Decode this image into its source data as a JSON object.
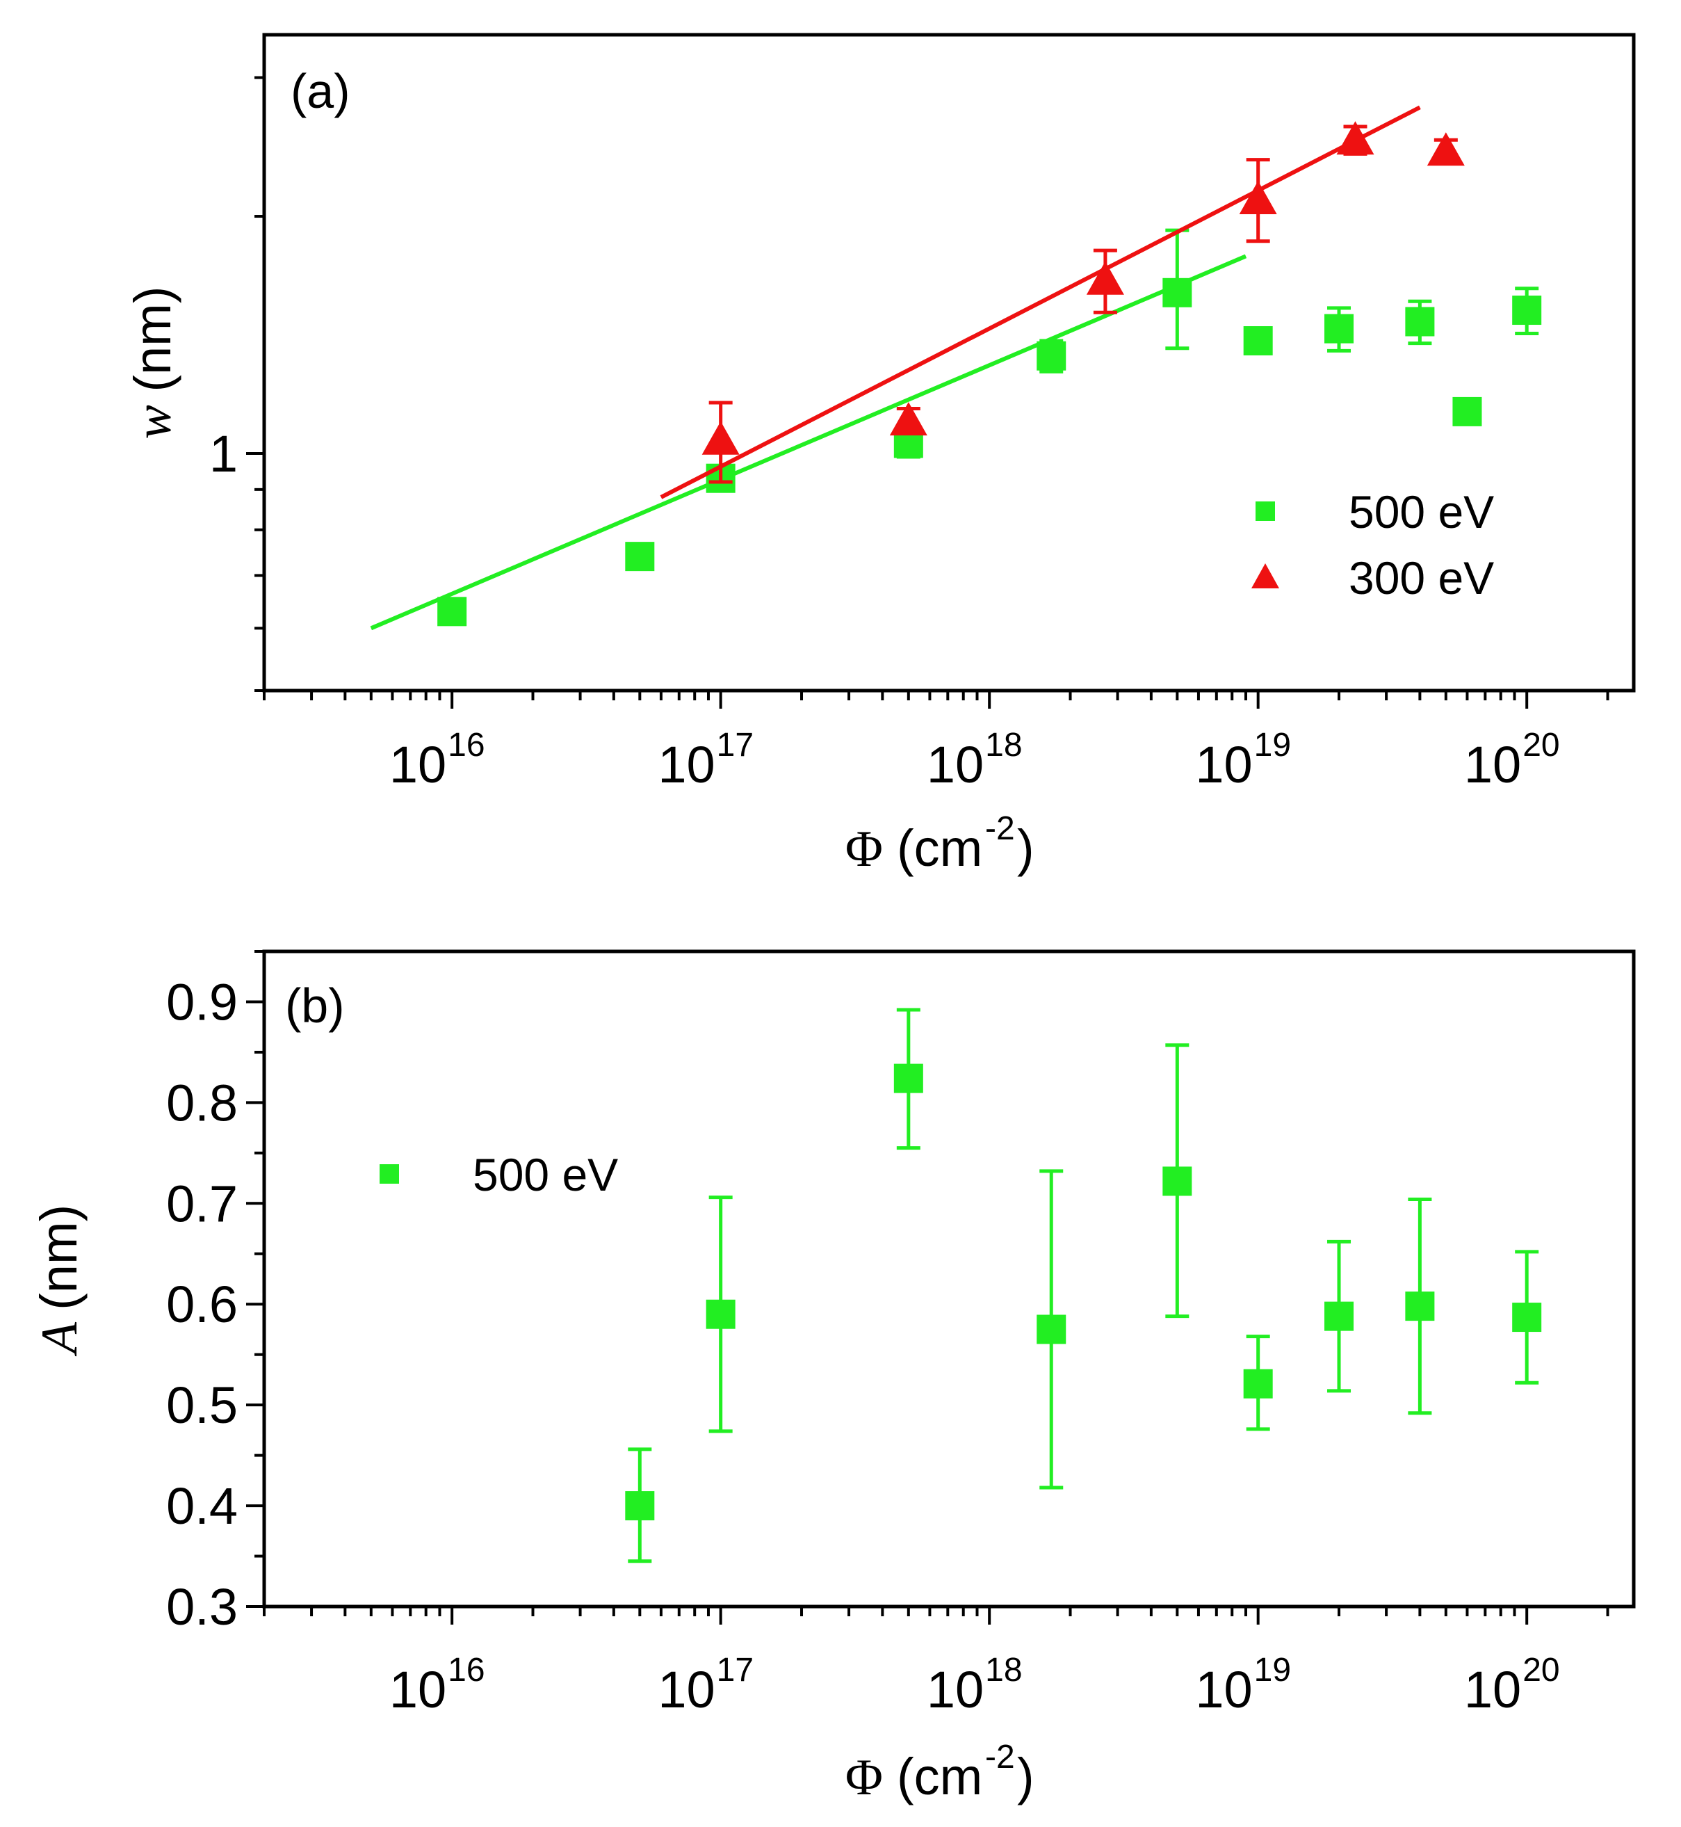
{
  "colors": {
    "green": "#22ee22",
    "red": "#ee1111",
    "axis": "#000000"
  },
  "chart_data": [
    {
      "type": "scatter",
      "panel_label": "(a)",
      "xlabel_symbol": "Φ",
      "xlabel_units": "(cm",
      "xlabel_exp": "-2",
      "xlabel_close": ")",
      "ylabel_symbol": "w",
      "ylabel_units": "(nm)",
      "xscale": "log",
      "yscale": "log",
      "xlim": [
        2000000000000000.0,
        2.5e+20
      ],
      "ylim": [
        0.5,
        3.4
      ],
      "x_ticks": [
        {
          "value": 1e+16,
          "base": "10",
          "exp": "16"
        },
        {
          "value": 1e+17,
          "base": "10",
          "exp": "17"
        },
        {
          "value": 1e+18,
          "base": "10",
          "exp": "18"
        },
        {
          "value": 1e+19,
          "base": "10",
          "exp": "19"
        },
        {
          "value": 1e+20,
          "base": "10",
          "exp": "20"
        }
      ],
      "y_ticks": [
        {
          "value": 1,
          "label": "1"
        }
      ],
      "legend": {
        "placement": "center-right",
        "entries": [
          {
            "label": "500 eV",
            "marker": "square",
            "color": "#22ee22"
          },
          {
            "label": "300 eV",
            "marker": "triangle",
            "color": "#ee1111"
          }
        ]
      },
      "series": [
        {
          "name": "500 eV",
          "marker": "square",
          "color": "#22ee22",
          "points": [
            {
              "x": 1e+16,
              "y": 0.63,
              "ylo": 0.61,
              "yhi": 0.65
            },
            {
              "x": 5e+16,
              "y": 0.74,
              "ylo": 0.725,
              "yhi": 0.755
            },
            {
              "x": 1e+17,
              "y": 0.93,
              "ylo": 0.91,
              "yhi": 0.95
            },
            {
              "x": 5e+17,
              "y": 1.03,
              "ylo": 0.99,
              "yhi": 1.07
            },
            {
              "x": 1.7e+18,
              "y": 1.33,
              "ylo": 1.27,
              "yhi": 1.39
            },
            {
              "x": 5e+18,
              "y": 1.6,
              "ylo": 1.36,
              "yhi": 1.92
            },
            {
              "x": 1e+19,
              "y": 1.39,
              "ylo": 1.39,
              "yhi": 1.39
            },
            {
              "x": 2e+19,
              "y": 1.44,
              "ylo": 1.35,
              "yhi": 1.53
            },
            {
              "x": 4e+19,
              "y": 1.47,
              "ylo": 1.38,
              "yhi": 1.56
            },
            {
              "x": 6e+19,
              "y": 1.13,
              "ylo": 1.13,
              "yhi": 1.13
            },
            {
              "x": 1e+20,
              "y": 1.52,
              "ylo": 1.42,
              "yhi": 1.62
            }
          ],
          "fit": {
            "x": [
              5000000000000000.0,
              9e+18
            ],
            "y": [
              0.6,
              1.78
            ]
          }
        },
        {
          "name": "300 eV",
          "marker": "triangle",
          "color": "#ee1111",
          "points": [
            {
              "x": 1e+17,
              "y": 1.04,
              "ylo": 0.92,
              "yhi": 1.16
            },
            {
              "x": 5e+17,
              "y": 1.1,
              "ylo": 1.06,
              "yhi": 1.14
            },
            {
              "x": 2.7e+18,
              "y": 1.66,
              "ylo": 1.51,
              "yhi": 1.81
            },
            {
              "x": 1e+19,
              "y": 2.1,
              "ylo": 1.86,
              "yhi": 2.36
            },
            {
              "x": 2.3e+19,
              "y": 2.5,
              "ylo": 2.4,
              "yhi": 2.6
            },
            {
              "x": 5e+19,
              "y": 2.42,
              "ylo": 2.34,
              "yhi": 2.5
            }
          ],
          "fit": {
            "x": [
              6e+16,
              4e+19
            ],
            "y": [
              0.88,
              2.75
            ]
          }
        }
      ]
    },
    {
      "type": "scatter",
      "panel_label": "(b)",
      "xlabel_symbol": "Φ",
      "xlabel_units": "(cm",
      "xlabel_exp": "-2",
      "xlabel_close": ")",
      "ylabel_symbol": "A",
      "ylabel_units": "(nm)",
      "xscale": "log",
      "yscale": "linear",
      "xlim": [
        2000000000000000.0,
        2.5e+20
      ],
      "ylim": [
        0.3,
        0.95
      ],
      "x_ticks": [
        {
          "value": 1e+16,
          "base": "10",
          "exp": "16"
        },
        {
          "value": 1e+17,
          "base": "10",
          "exp": "17"
        },
        {
          "value": 1e+18,
          "base": "10",
          "exp": "18"
        },
        {
          "value": 1e+19,
          "base": "10",
          "exp": "19"
        },
        {
          "value": 1e+20,
          "base": "10",
          "exp": "20"
        }
      ],
      "y_ticks": [
        {
          "value": 0.3,
          "label": "0.3"
        },
        {
          "value": 0.4,
          "label": "0.4"
        },
        {
          "value": 0.5,
          "label": "0.5"
        },
        {
          "value": 0.6,
          "label": "0.6"
        },
        {
          "value": 0.7,
          "label": "0.7"
        },
        {
          "value": 0.8,
          "label": "0.8"
        },
        {
          "value": 0.9,
          "label": "0.9"
        }
      ],
      "legend": {
        "placement": "upper-left",
        "entries": [
          {
            "label": "500 eV",
            "marker": "square",
            "color": "#22ee22"
          }
        ]
      },
      "series": [
        {
          "name": "500 eV",
          "marker": "square",
          "color": "#22ee22",
          "points": [
            {
              "x": 5e+16,
              "y": 0.4,
              "ylo": 0.345,
              "yhi": 0.456
            },
            {
              "x": 1e+17,
              "y": 0.59,
              "ylo": 0.474,
              "yhi": 0.706
            },
            {
              "x": 5e+17,
              "y": 0.824,
              "ylo": 0.755,
              "yhi": 0.892
            },
            {
              "x": 1.7e+18,
              "y": 0.575,
              "ylo": 0.418,
              "yhi": 0.732
            },
            {
              "x": 5e+18,
              "y": 0.722,
              "ylo": 0.588,
              "yhi": 0.857
            },
            {
              "x": 1e+19,
              "y": 0.521,
              "ylo": 0.476,
              "yhi": 0.568
            },
            {
              "x": 2e+19,
              "y": 0.588,
              "ylo": 0.514,
              "yhi": 0.662
            },
            {
              "x": 4e+19,
              "y": 0.598,
              "ylo": 0.492,
              "yhi": 0.704
            },
            {
              "x": 1e+20,
              "y": 0.587,
              "ylo": 0.522,
              "yhi": 0.652
            }
          ]
        }
      ]
    }
  ]
}
